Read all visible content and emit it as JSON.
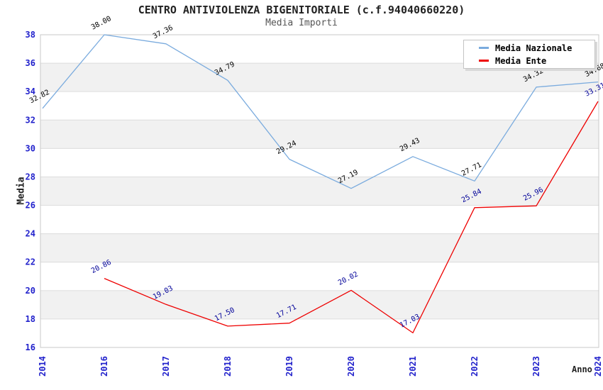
{
  "header": {
    "title": "CENTRO ANTIVIOLENZA BIGENITORIALE (c.f.94040660220)",
    "subtitle": "Media Importi"
  },
  "axes": {
    "y_title": "Media",
    "x_title": "Anno"
  },
  "legend": {
    "items": [
      {
        "label": "Media Nazionale",
        "color": "#7aabde"
      },
      {
        "label": "Media Ente",
        "color": "#ee0000"
      }
    ]
  },
  "chart_data": {
    "type": "line",
    "title": "CENTRO ANTIVIOLENZA BIGENITORIALE (c.f.94040660220)",
    "subtitle": "Media Importi",
    "xlabel": "Anno",
    "ylabel": "Media",
    "categories": [
      "2014",
      "2016",
      "2017",
      "2018",
      "2019",
      "2020",
      "2021",
      "2022",
      "2023",
      "2024"
    ],
    "series": [
      {
        "name": "Media Nazionale",
        "color": "#7aabde",
        "label_color": "#000000",
        "values": [
          32.82,
          38.0,
          37.36,
          34.79,
          29.24,
          27.19,
          29.43,
          27.71,
          34.32,
          34.68
        ]
      },
      {
        "name": "Media Ente",
        "color": "#ee0000",
        "label_color": "#000099",
        "values": [
          null,
          20.86,
          19.03,
          17.5,
          17.71,
          20.02,
          17.03,
          25.84,
          25.96,
          33.31
        ]
      }
    ],
    "ylim": [
      16,
      38
    ],
    "ytick_step": 2,
    "grid": true,
    "legend_position": "top-right",
    "tick_color": "#2222cc",
    "band_color": "#f1f1f1",
    "grid_color": "#dcdcdc",
    "frame_color": "#c9c9c9"
  }
}
